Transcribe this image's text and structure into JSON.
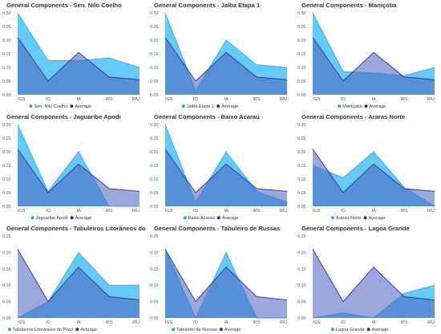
{
  "chart_data": [
    {
      "type": "area",
      "title": "General Components - Sen. Nilo Coelho",
      "categories": [
        "IGS",
        "IO",
        "IA",
        "IRS",
        "IRU"
      ],
      "ylim": [
        0,
        0.3
      ],
      "yticks": [
        "0.30",
        "0.25",
        "0.20",
        "0.15",
        "0.10",
        "0.05",
        "0.00"
      ],
      "series": [
        {
          "name": "Sen. Nilo Coelho",
          "values": [
            0.3,
            0.125,
            0.125,
            0.135,
            0.1
          ]
        },
        {
          "name": "Average",
          "values": [
            0.21,
            0.05,
            0.155,
            0.065,
            0.055
          ]
        }
      ]
    },
    {
      "type": "area",
      "title": "General Components - Jaíba Etapa 1",
      "categories": [
        "IGS",
        "IO",
        "IA",
        "IRS",
        "IRU"
      ],
      "ylim": [
        0,
        0.3
      ],
      "yticks": [
        "0.30",
        "0.25",
        "0.20",
        "0.15",
        "0.10",
        "0.05",
        "0.00"
      ],
      "series": [
        {
          "name": "Jaíba Etapa 1",
          "values": [
            0.3,
            0.015,
            0.2,
            0.11,
            0.1
          ]
        },
        {
          "name": "Average",
          "values": [
            0.21,
            0.05,
            0.155,
            0.065,
            0.055
          ]
        }
      ]
    },
    {
      "type": "area",
      "title": "General Components - Maniçoba",
      "categories": [
        "IGS",
        "IO",
        "IA",
        "IRS",
        "IRU"
      ],
      "ylim": [
        0,
        0.3
      ],
      "yticks": [
        "0.30",
        "0.25",
        "0.20",
        "0.15",
        "0.10",
        "0.05",
        "0.00"
      ],
      "series": [
        {
          "name": "Maniçoba",
          "values": [
            0.3,
            0.085,
            0.08,
            0.07,
            0.1
          ]
        },
        {
          "name": "Average",
          "values": [
            0.21,
            0.05,
            0.155,
            0.065,
            0.055
          ]
        }
      ]
    },
    {
      "type": "area",
      "title": "General Components - Jaguaribe Apodi",
      "categories": [
        "IGS",
        "IO",
        "IA",
        "IRS",
        "IRU"
      ],
      "ylim": [
        0,
        0.3
      ],
      "yticks": [
        "0.30",
        "0.25",
        "0.20",
        "0.15",
        "0.10",
        "0.05",
        "0.00"
      ],
      "series": [
        {
          "name": "Jaguaribe Apodi",
          "values": [
            0.3,
            0.055,
            0.2,
            0.0,
            0.0
          ]
        },
        {
          "name": "Average",
          "values": [
            0.21,
            0.05,
            0.155,
            0.065,
            0.055
          ]
        }
      ]
    },
    {
      "type": "area",
      "title": "General Components - Baixo Acaraú",
      "categories": [
        "IGS",
        "IO",
        "IA",
        "IRS",
        "IRU"
      ],
      "ylim": [
        0,
        0.3
      ],
      "yticks": [
        "0.30",
        "0.25",
        "0.20",
        "0.15",
        "0.10",
        "0.05",
        "0.00"
      ],
      "series": [
        {
          "name": "Baixo Acaraú",
          "values": [
            0.3,
            0.015,
            0.2,
            0.055,
            0.015
          ]
        },
        {
          "name": "Average",
          "values": [
            0.21,
            0.05,
            0.155,
            0.065,
            0.055
          ]
        }
      ]
    },
    {
      "type": "area",
      "title": "General Components - Araras Norte",
      "categories": [
        "IGS",
        "IO",
        "IA",
        "IRS",
        "IRU"
      ],
      "ylim": [
        0,
        0.3
      ],
      "yticks": [
        "0.30",
        "0.25",
        "0.20",
        "0.15",
        "0.10",
        "0.05",
        "0.00"
      ],
      "series": [
        {
          "name": "Araras Norte",
          "values": [
            0.15,
            0.105,
            0.2,
            0.07,
            0.0
          ]
        },
        {
          "name": "Average",
          "values": [
            0.21,
            0.05,
            0.155,
            0.065,
            0.055
          ]
        }
      ]
    },
    {
      "type": "area",
      "title": "General Components - Tabuleiros Litorâneos do Piauí",
      "categories": [
        "IGS",
        "IO",
        "IA",
        "IRS",
        "IRU"
      ],
      "ylim": [
        0,
        0.25
      ],
      "yticks": [
        "0.25",
        "0.20",
        "0.15",
        "0.10",
        "0.05",
        "0.00"
      ],
      "series": [
        {
          "name": "Tabuleiros Litorâneos do Piauí",
          "values": [
            0.0,
            0.05,
            0.2,
            0.1,
            0.1
          ]
        },
        {
          "name": "Average",
          "values": [
            0.21,
            0.05,
            0.155,
            0.065,
            0.055
          ]
        }
      ]
    },
    {
      "type": "area",
      "title": "General Components - Tabuleiro de Russas",
      "categories": [
        "IGS",
        "IO",
        "IA",
        "IRS",
        "IRU"
      ],
      "ylim": [
        0,
        0.25
      ],
      "yticks": [
        "0.25",
        "0.20",
        "0.15",
        "0.10",
        "0.05",
        "0.00"
      ],
      "series": [
        {
          "name": "Tabuleiro de Russas",
          "values": [
            0.21,
            0.0,
            0.2,
            0.0,
            0.0
          ]
        },
        {
          "name": "Average",
          "values": [
            0.21,
            0.05,
            0.155,
            0.065,
            0.055
          ]
        }
      ]
    },
    {
      "type": "area",
      "title": "General Components - Lagoa Grande",
      "categories": [
        "IGS",
        "IO",
        "IA",
        "IRS",
        "IRU"
      ],
      "ylim": [
        0,
        0.25
      ],
      "yticks": [
        "0.25",
        "0.20",
        "0.15",
        "0.10",
        "0.05",
        "0.00"
      ],
      "series": [
        {
          "name": "Lagoa Grande",
          "values": [
            0.0,
            0.015,
            0.0,
            0.075,
            0.1
          ]
        },
        {
          "name": "Average",
          "values": [
            0.21,
            0.05,
            0.155,
            0.065,
            0.055
          ]
        }
      ]
    }
  ],
  "colors": {
    "project_fill": "#5ec7f5",
    "project_line": "#3aa8e8",
    "average_fill": "#4b5ec0",
    "average_line": "#28308a",
    "legend_project_dot": "#1aa3ec",
    "legend_average_dot": "#2d2a8c"
  }
}
